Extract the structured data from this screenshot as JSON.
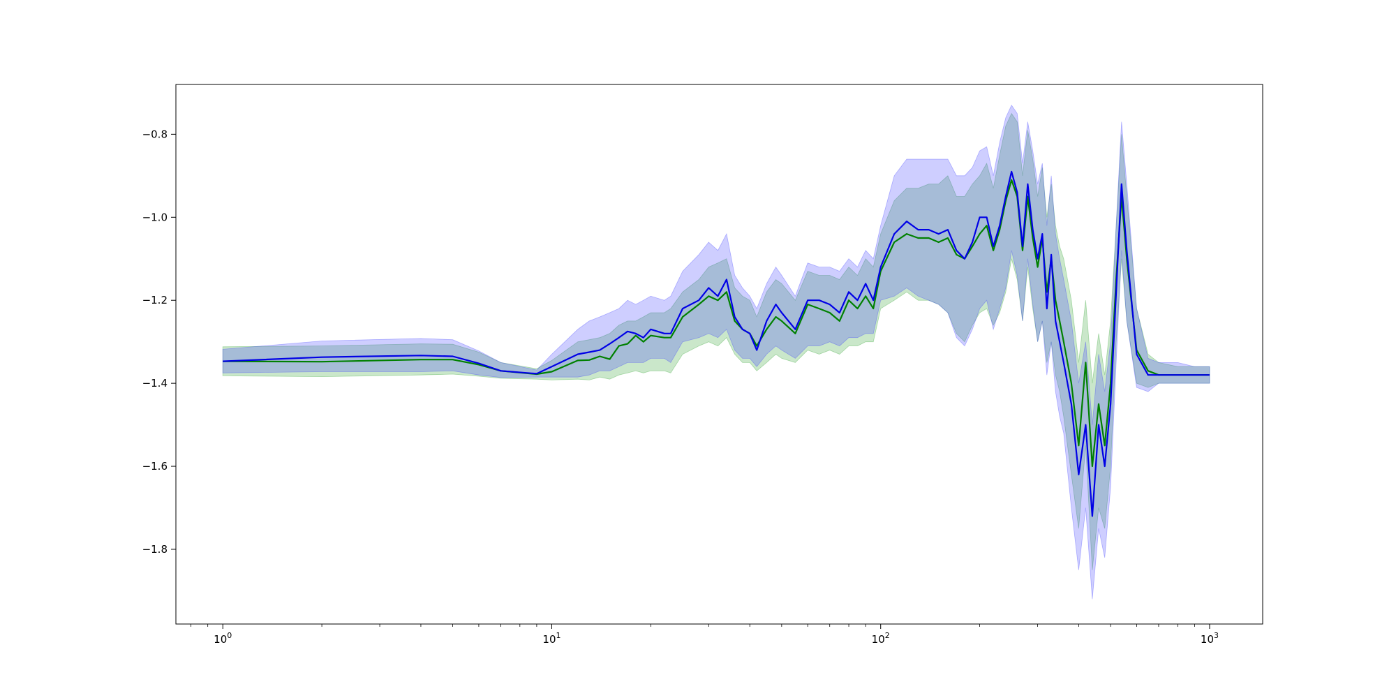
{
  "chart_data": {
    "type": "line",
    "title": "",
    "xlabel": "",
    "ylabel": "",
    "x_scale": "log",
    "xlim": [
      0.72,
      1450
    ],
    "ylim": [
      -1.98,
      -0.68
    ],
    "grid": false,
    "legend": "none",
    "x_ticks": [
      {
        "value": 1,
        "base": "10",
        "exp": "0"
      },
      {
        "value": 10,
        "base": "10",
        "exp": "1"
      },
      {
        "value": 100,
        "base": "10",
        "exp": "2"
      },
      {
        "value": 1000,
        "base": "10",
        "exp": "3"
      }
    ],
    "y_ticks": [
      {
        "value": -0.8,
        "label": "−0.8"
      },
      {
        "value": -1.0,
        "label": "−1.0"
      },
      {
        "value": -1.2,
        "label": "−1.2"
      },
      {
        "value": -1.4,
        "label": "−1.4"
      },
      {
        "value": -1.6,
        "label": "−1.6"
      },
      {
        "value": -1.8,
        "label": "−1.8"
      }
    ],
    "series": [
      {
        "color": "#008000",
        "band_color": "#2ca02c",
        "band_opacity": 0.25,
        "points": [
          [
            1,
            -1.347,
            -1.312,
            -1.382
          ],
          [
            2,
            -1.348,
            -1.31,
            -1.384
          ],
          [
            4,
            -1.343,
            -1.305,
            -1.38
          ],
          [
            5,
            -1.343,
            -1.306,
            -1.378
          ],
          [
            6,
            -1.355,
            -1.325,
            -1.383
          ],
          [
            7,
            -1.37,
            -1.35,
            -1.388
          ],
          [
            9,
            -1.378,
            -1.365,
            -1.39
          ],
          [
            10,
            -1.372,
            -1.345,
            -1.392
          ],
          [
            12,
            -1.345,
            -1.3,
            -1.39
          ],
          [
            13,
            -1.344,
            -1.295,
            -1.392
          ],
          [
            14,
            -1.335,
            -1.29,
            -1.385
          ],
          [
            15,
            -1.342,
            -1.28,
            -1.39
          ],
          [
            16,
            -1.31,
            -1.26,
            -1.38
          ],
          [
            17,
            -1.305,
            -1.25,
            -1.375
          ],
          [
            18,
            -1.285,
            -1.25,
            -1.37
          ],
          [
            19,
            -1.3,
            -1.24,
            -1.375
          ],
          [
            20,
            -1.285,
            -1.23,
            -1.37
          ],
          [
            22,
            -1.29,
            -1.23,
            -1.37
          ],
          [
            23,
            -1.29,
            -1.22,
            -1.375
          ],
          [
            25,
            -1.24,
            -1.18,
            -1.33
          ],
          [
            28,
            -1.21,
            -1.15,
            -1.31
          ],
          [
            30,
            -1.19,
            -1.12,
            -1.3
          ],
          [
            32,
            -1.2,
            -1.11,
            -1.31
          ],
          [
            34,
            -1.18,
            -1.1,
            -1.29
          ],
          [
            36,
            -1.25,
            -1.17,
            -1.33
          ],
          [
            38,
            -1.27,
            -1.19,
            -1.35
          ],
          [
            40,
            -1.28,
            -1.2,
            -1.35
          ],
          [
            42,
            -1.31,
            -1.24,
            -1.37
          ],
          [
            45,
            -1.27,
            -1.18,
            -1.35
          ],
          [
            48,
            -1.24,
            -1.15,
            -1.33
          ],
          [
            50,
            -1.25,
            -1.16,
            -1.34
          ],
          [
            55,
            -1.28,
            -1.2,
            -1.35
          ],
          [
            60,
            -1.21,
            -1.13,
            -1.32
          ],
          [
            65,
            -1.22,
            -1.14,
            -1.33
          ],
          [
            70,
            -1.23,
            -1.14,
            -1.32
          ],
          [
            75,
            -1.25,
            -1.15,
            -1.33
          ],
          [
            80,
            -1.2,
            -1.12,
            -1.31
          ],
          [
            85,
            -1.22,
            -1.14,
            -1.31
          ],
          [
            90,
            -1.19,
            -1.1,
            -1.3
          ],
          [
            95,
            -1.22,
            -1.12,
            -1.3
          ],
          [
            100,
            -1.13,
            -1.04,
            -1.22
          ],
          [
            110,
            -1.06,
            -0.96,
            -1.2
          ],
          [
            120,
            -1.04,
            -0.93,
            -1.18
          ],
          [
            130,
            -1.05,
            -0.93,
            -1.2
          ],
          [
            140,
            -1.05,
            -0.92,
            -1.2
          ],
          [
            150,
            -1.06,
            -0.92,
            -1.21
          ],
          [
            160,
            -1.05,
            -0.9,
            -1.23
          ],
          [
            170,
            -1.09,
            -0.95,
            -1.28
          ],
          [
            180,
            -1.1,
            -0.95,
            -1.3
          ],
          [
            190,
            -1.07,
            -0.92,
            -1.26
          ],
          [
            200,
            -1.04,
            -0.9,
            -1.23
          ],
          [
            210,
            -1.02,
            -0.87,
            -1.22
          ],
          [
            220,
            -1.08,
            -0.93,
            -1.26
          ],
          [
            230,
            -1.03,
            -0.85,
            -1.23
          ],
          [
            240,
            -0.96,
            -0.78,
            -1.18
          ],
          [
            250,
            -0.91,
            -0.75,
            -1.1
          ],
          [
            260,
            -0.95,
            -0.77,
            -1.15
          ],
          [
            270,
            -1.08,
            -0.9,
            -1.25
          ],
          [
            280,
            -0.95,
            -0.79,
            -1.12
          ],
          [
            290,
            -1.05,
            -0.86,
            -1.22
          ],
          [
            300,
            -1.12,
            -0.95,
            -1.3
          ],
          [
            310,
            -1.05,
            -0.88,
            -1.25
          ],
          [
            320,
            -1.18,
            -1.0,
            -1.35
          ],
          [
            330,
            -1.1,
            -0.92,
            -1.3
          ],
          [
            340,
            -1.2,
            -1.02,
            -1.38
          ],
          [
            350,
            -1.25,
            -1.07,
            -1.42
          ],
          [
            360,
            -1.3,
            -1.1,
            -1.48
          ],
          [
            380,
            -1.4,
            -1.2,
            -1.62
          ],
          [
            400,
            -1.55,
            -1.35,
            -1.75
          ],
          [
            420,
            -1.35,
            -1.2,
            -1.55
          ],
          [
            440,
            -1.6,
            -1.4,
            -1.85
          ],
          [
            460,
            -1.45,
            -1.28,
            -1.7
          ],
          [
            480,
            -1.55,
            -1.38,
            -1.75
          ],
          [
            500,
            -1.4,
            -1.25,
            -1.6
          ],
          [
            520,
            -1.15,
            -1.02,
            -1.3
          ],
          [
            540,
            -0.95,
            -0.8,
            -1.1
          ],
          [
            560,
            -1.1,
            -0.95,
            -1.25
          ],
          [
            600,
            -1.32,
            -1.22,
            -1.4
          ],
          [
            650,
            -1.37,
            -1.33,
            -1.41
          ],
          [
            700,
            -1.38,
            -1.35,
            -1.4
          ],
          [
            800,
            -1.38,
            -1.36,
            -1.4
          ],
          [
            900,
            -1.38,
            -1.36,
            -1.4
          ],
          [
            1000,
            -1.38,
            -1.36,
            -1.4
          ]
        ]
      },
      {
        "color": "#0000e6",
        "band_color": "#3a3aff",
        "band_opacity": 0.25,
        "points": [
          [
            1,
            -1.347,
            -1.318,
            -1.375
          ],
          [
            2,
            -1.337,
            -1.298,
            -1.372
          ],
          [
            4,
            -1.333,
            -1.292,
            -1.372
          ],
          [
            5,
            -1.335,
            -1.295,
            -1.37
          ],
          [
            6,
            -1.352,
            -1.322,
            -1.38
          ],
          [
            7,
            -1.37,
            -1.35,
            -1.386
          ],
          [
            9,
            -1.377,
            -1.368,
            -1.385
          ],
          [
            10,
            -1.36,
            -1.33,
            -1.385
          ],
          [
            12,
            -1.33,
            -1.27,
            -1.385
          ],
          [
            13,
            -1.325,
            -1.25,
            -1.38
          ],
          [
            14,
            -1.32,
            -1.24,
            -1.37
          ],
          [
            15,
            -1.305,
            -1.23,
            -1.37
          ],
          [
            16,
            -1.29,
            -1.22,
            -1.36
          ],
          [
            17,
            -1.275,
            -1.2,
            -1.35
          ],
          [
            18,
            -1.28,
            -1.21,
            -1.35
          ],
          [
            19,
            -1.29,
            -1.2,
            -1.35
          ],
          [
            20,
            -1.27,
            -1.19,
            -1.34
          ],
          [
            22,
            -1.28,
            -1.2,
            -1.34
          ],
          [
            23,
            -1.28,
            -1.19,
            -1.35
          ],
          [
            25,
            -1.22,
            -1.13,
            -1.3
          ],
          [
            28,
            -1.2,
            -1.09,
            -1.29
          ],
          [
            30,
            -1.17,
            -1.06,
            -1.28
          ],
          [
            32,
            -1.19,
            -1.08,
            -1.29
          ],
          [
            34,
            -1.15,
            -1.04,
            -1.27
          ],
          [
            36,
            -1.24,
            -1.14,
            -1.32
          ],
          [
            38,
            -1.27,
            -1.17,
            -1.34
          ],
          [
            40,
            -1.28,
            -1.19,
            -1.34
          ],
          [
            42,
            -1.32,
            -1.22,
            -1.36
          ],
          [
            45,
            -1.25,
            -1.16,
            -1.33
          ],
          [
            48,
            -1.21,
            -1.12,
            -1.31
          ],
          [
            50,
            -1.23,
            -1.14,
            -1.32
          ],
          [
            55,
            -1.27,
            -1.19,
            -1.34
          ],
          [
            60,
            -1.2,
            -1.11,
            -1.31
          ],
          [
            65,
            -1.2,
            -1.12,
            -1.31
          ],
          [
            70,
            -1.21,
            -1.12,
            -1.3
          ],
          [
            75,
            -1.23,
            -1.13,
            -1.31
          ],
          [
            80,
            -1.18,
            -1.1,
            -1.29
          ],
          [
            85,
            -1.2,
            -1.12,
            -1.29
          ],
          [
            90,
            -1.16,
            -1.08,
            -1.28
          ],
          [
            95,
            -1.2,
            -1.1,
            -1.28
          ],
          [
            100,
            -1.12,
            -1.02,
            -1.2
          ],
          [
            110,
            -1.04,
            -0.9,
            -1.19
          ],
          [
            120,
            -1.01,
            -0.86,
            -1.17
          ],
          [
            130,
            -1.03,
            -0.86,
            -1.19
          ],
          [
            140,
            -1.03,
            -0.86,
            -1.2
          ],
          [
            150,
            -1.04,
            -0.86,
            -1.21
          ],
          [
            160,
            -1.03,
            -0.86,
            -1.23
          ],
          [
            170,
            -1.08,
            -0.9,
            -1.29
          ],
          [
            180,
            -1.1,
            -0.9,
            -1.31
          ],
          [
            190,
            -1.06,
            -0.88,
            -1.27
          ],
          [
            200,
            -1.0,
            -0.84,
            -1.22
          ],
          [
            210,
            -1.0,
            -0.83,
            -1.2
          ],
          [
            220,
            -1.07,
            -0.9,
            -1.27
          ],
          [
            230,
            -1.02,
            -0.82,
            -1.22
          ],
          [
            240,
            -0.95,
            -0.76,
            -1.17
          ],
          [
            250,
            -0.89,
            -0.73,
            -1.08
          ],
          [
            260,
            -0.94,
            -0.75,
            -1.14
          ],
          [
            270,
            -1.07,
            -0.87,
            -1.25
          ],
          [
            280,
            -0.92,
            -0.77,
            -1.1
          ],
          [
            290,
            -1.03,
            -0.84,
            -1.21
          ],
          [
            300,
            -1.1,
            -0.92,
            -1.3
          ],
          [
            310,
            -1.04,
            -0.87,
            -1.25
          ],
          [
            320,
            -1.22,
            -1.02,
            -1.38
          ],
          [
            330,
            -1.09,
            -0.9,
            -1.3
          ],
          [
            340,
            -1.25,
            -1.04,
            -1.42
          ],
          [
            350,
            -1.3,
            -1.1,
            -1.48
          ],
          [
            360,
            -1.35,
            -1.15,
            -1.52
          ],
          [
            380,
            -1.45,
            -1.25,
            -1.7
          ],
          [
            400,
            -1.62,
            -1.4,
            -1.85
          ],
          [
            420,
            -1.5,
            -1.3,
            -1.7
          ],
          [
            440,
            -1.72,
            -1.5,
            -1.92
          ],
          [
            460,
            -1.5,
            -1.33,
            -1.75
          ],
          [
            480,
            -1.6,
            -1.42,
            -1.82
          ],
          [
            500,
            -1.45,
            -1.3,
            -1.65
          ],
          [
            520,
            -1.18,
            -1.02,
            -1.35
          ],
          [
            540,
            -0.92,
            -0.77,
            -1.08
          ],
          [
            560,
            -1.08,
            -0.92,
            -1.25
          ],
          [
            600,
            -1.33,
            -1.22,
            -1.41
          ],
          [
            650,
            -1.38,
            -1.34,
            -1.42
          ],
          [
            700,
            -1.38,
            -1.35,
            -1.4
          ],
          [
            800,
            -1.38,
            -1.35,
            -1.4
          ],
          [
            900,
            -1.38,
            -1.36,
            -1.4
          ],
          [
            1000,
            -1.38,
            -1.36,
            -1.4
          ]
        ]
      }
    ]
  }
}
